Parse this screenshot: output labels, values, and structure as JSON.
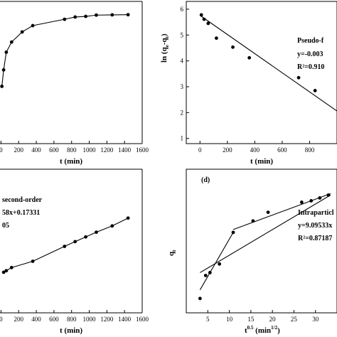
{
  "chart_data": [
    {
      "type": "line",
      "panel": "a",
      "xlabel": "t (min)",
      "ylabel": "",
      "xlim": [
        -100,
        1600
      ],
      "xticks": [
        0,
        200,
        400,
        600,
        800,
        1000,
        1200,
        1400,
        1600
      ],
      "ylim": [
        0,
        1
      ],
      "series": [
        {
          "x": [
            10,
            30,
            60,
            120,
            240,
            360,
            720,
            840,
            960,
            1080,
            1260,
            1440
          ],
          "y": [
            0.43,
            0.56,
            0.7,
            0.78,
            0.86,
            0.91,
            0.96,
            0.978,
            0.983,
            0.993,
            0.995,
            0.996
          ]
        }
      ]
    },
    {
      "type": "scatter",
      "panel": "b",
      "xlabel": "t (min)",
      "ylabel": "ln (q_e-q_t)",
      "xlim": [
        -100,
        1000
      ],
      "xticks": [
        0,
        200,
        400,
        600,
        800
      ],
      "ylim": [
        0.8,
        6.3
      ],
      "yticks": [
        1,
        2,
        3,
        4,
        5,
        6
      ],
      "annotations": [
        "Pseudo-f",
        "y=-0.003",
        "R²=0.910"
      ],
      "series": [
        {
          "x": [
            10,
            30,
            60,
            120,
            240,
            360,
            720,
            840
          ],
          "y": [
            5.78,
            5.61,
            5.45,
            4.88,
            4.53,
            4.12,
            3.35,
            2.85
          ]
        }
      ],
      "fit": {
        "x": [
          0,
          1000
        ],
        "y": [
          5.76,
          2.06
        ]
      }
    },
    {
      "type": "line",
      "panel": "c",
      "xlabel": "t (min)",
      "ylabel": "",
      "xlim": [
        -100,
        1600
      ],
      "xticks": [
        0,
        200,
        400,
        600,
        800,
        1000,
        1200,
        1400,
        1600
      ],
      "ylim": [
        0,
        1
      ],
      "annotations": [
        "second-order",
        "58x+0.17331",
        "05"
      ],
      "series": [
        {
          "x": [
            30,
            60,
            120,
            360,
            720,
            840,
            960,
            1080,
            1260,
            1440
          ],
          "y": [
            0.24,
            0.25,
            0.27,
            0.31,
            0.405,
            0.435,
            0.465,
            0.495,
            0.535,
            0.585
          ]
        }
      ]
    },
    {
      "type": "scatter",
      "panel": "d",
      "label": "(d)",
      "xlabel": "t^0.5 (min^1/2)",
      "ylabel": "q_t",
      "xlim": [
        0,
        35
      ],
      "xticks": [
        5,
        10,
        15,
        20,
        25,
        30
      ],
      "ylim": [
        0,
        1
      ],
      "annotations": [
        "Intraparticl",
        "y=9.09533x",
        "R²=0.87187"
      ],
      "series": [
        {
          "x": [
            3.2,
            4.5,
            5.5,
            7.7,
            10.9,
            15.5,
            19.0,
            26.8,
            29.0,
            31.0,
            33.0
          ],
          "y": [
            0.1,
            0.26,
            0.28,
            0.34,
            0.56,
            0.64,
            0.7,
            0.77,
            0.78,
            0.8,
            0.82
          ]
        }
      ],
      "fits": [
        {
          "x": [
            3.2,
            10.9
          ],
          "y": [
            0.16,
            0.56
          ]
        },
        {
          "x": [
            10.9,
            33.5
          ],
          "y": [
            0.58,
            0.83
          ]
        },
        {
          "x": [
            3.2,
            33.5
          ],
          "y": [
            0.28,
            0.82
          ]
        }
      ]
    }
  ]
}
